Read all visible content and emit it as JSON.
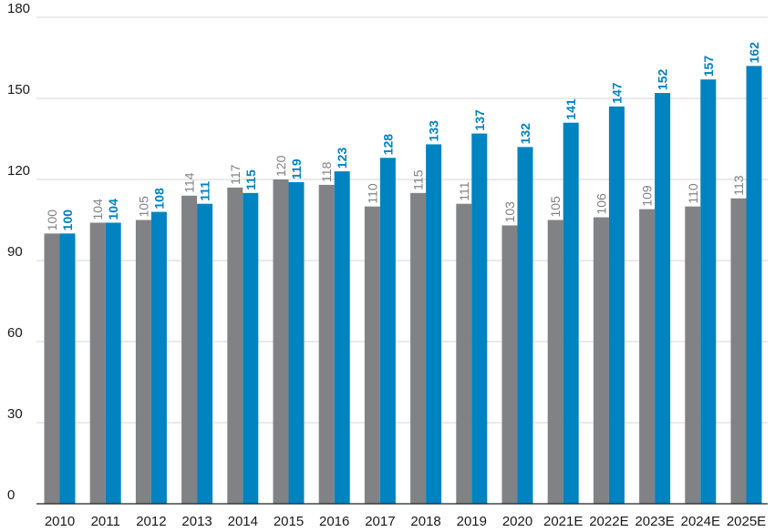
{
  "chart_data": {
    "type": "bar",
    "title": "",
    "xlabel": "",
    "ylabel": "",
    "categories": [
      "2010",
      "2011",
      "2012",
      "2013",
      "2014",
      "2015",
      "2016",
      "2017",
      "2018",
      "2019",
      "2020",
      "2021E",
      "2022E",
      "2023E",
      "2024E",
      "2025E"
    ],
    "series": [
      {
        "values": [
          100,
          104,
          105,
          114,
          117,
          120,
          118,
          110,
          115,
          111,
          103,
          105,
          106,
          109,
          110,
          113
        ],
        "color": "#818285",
        "label_color": "#818285",
        "label_weight": "normal"
      },
      {
        "values": [
          100,
          104,
          108,
          111,
          115,
          119,
          123,
          128,
          133,
          137,
          132,
          141,
          147,
          152,
          157,
          162
        ],
        "color": "#0083c1",
        "label_color": "#0083c1",
        "label_weight": "bold"
      }
    ],
    "ylim": [
      0,
      180
    ],
    "yticks": [
      0,
      30,
      60,
      90,
      120,
      150,
      180
    ],
    "grid": true,
    "legend": "none"
  }
}
